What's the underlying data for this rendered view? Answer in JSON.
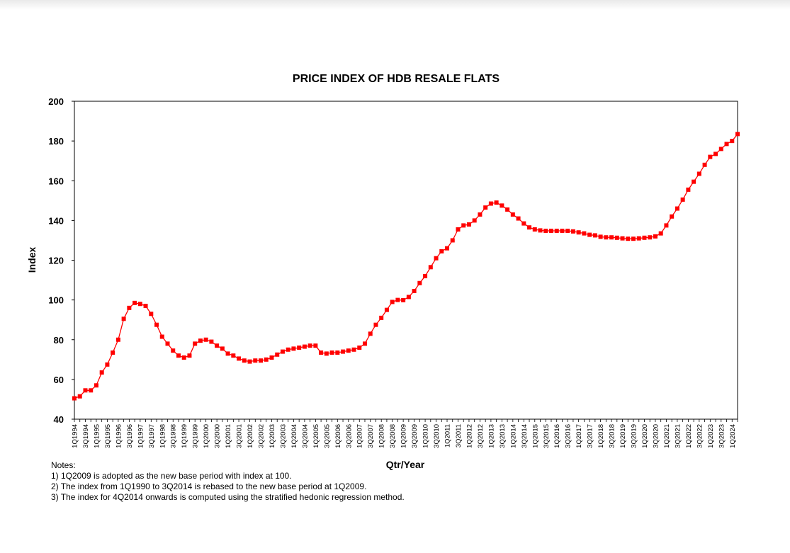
{
  "chart_data": {
    "type": "line",
    "title": "PRICE INDEX OF HDB RESALE FLATS",
    "xlabel": "Qtr/Year",
    "ylabel": "Index",
    "ylim": [
      40,
      200
    ],
    "yticks": [
      40,
      60,
      80,
      100,
      120,
      140,
      160,
      180,
      200
    ],
    "x_start": "1Q1994",
    "x_end": "1Q2024",
    "tick_labels": [
      "1Q1994",
      "3Q1994",
      "1Q1995",
      "3Q1995",
      "1Q1996",
      "3Q1996",
      "1Q1997",
      "3Q1997",
      "1Q1998",
      "3Q1998",
      "1Q1999",
      "3Q1999",
      "1Q2000",
      "3Q2000",
      "1Q2001",
      "3Q2001",
      "1Q2002",
      "3Q2002",
      "1Q2003",
      "3Q2003",
      "1Q2004",
      "3Q2004",
      "1Q2005",
      "3Q2005",
      "1Q2006",
      "3Q2006",
      "1Q2007",
      "3Q2007",
      "1Q2008",
      "3Q2008",
      "1Q2009",
      "3Q2009",
      "1Q2010",
      "3Q2010",
      "1Q2011",
      "3Q2011",
      "1Q2012",
      "3Q2012",
      "1Q2013",
      "3Q2013",
      "1Q2014",
      "3Q2014",
      "1Q2015",
      "3Q2015",
      "1Q2016",
      "3Q2016",
      "1Q2017",
      "3Q2017",
      "1Q2018",
      "3Q2018",
      "1Q2019",
      "3Q2019",
      "1Q2020",
      "3Q2020",
      "1Q2021",
      "3Q2021",
      "1Q2022",
      "3Q2022",
      "1Q2023",
      "3Q2023",
      "1Q2024"
    ],
    "grid": false,
    "legend": "none",
    "series": [
      {
        "color": "#ff0000",
        "values": [
          50.5,
          51.5,
          54.5,
          54.5,
          57,
          63.5,
          67.5,
          73.5,
          80,
          90.5,
          96,
          98.5,
          98,
          97,
          93,
          87.5,
          81.5,
          78,
          74.5,
          72,
          71,
          72,
          78,
          79.5,
          80,
          79,
          77,
          75.5,
          73,
          72,
          70.5,
          69.5,
          69,
          69.5,
          69.5,
          70,
          71,
          72.5,
          74,
          75,
          75.5,
          76,
          76.5,
          77,
          77,
          73.5,
          73,
          73.5,
          73.5,
          74,
          74.5,
          75,
          76,
          78,
          83,
          87.5,
          91,
          95,
          99,
          100,
          99.9,
          101.5,
          104.5,
          108.5,
          112,
          116.5,
          121,
          124.5,
          126,
          130,
          135.5,
          137.5,
          138,
          140,
          143,
          146.5,
          148.5,
          149,
          147.5,
          145.5,
          143,
          141,
          138.5,
          136.5,
          135.5,
          135,
          134.8,
          134.8,
          134.8,
          134.8,
          134.8,
          134.5,
          134,
          133.5,
          132.8,
          132.5,
          131.8,
          131.5,
          131.5,
          131.3,
          131,
          130.8,
          130.8,
          131,
          131.3,
          131.5,
          132,
          133.5,
          137.5,
          142,
          146,
          150.5,
          155.5,
          159.5,
          163.5,
          168,
          172,
          173.5,
          176,
          178.5,
          180,
          183.5
        ]
      }
    ]
  },
  "notes": {
    "heading": "Notes:",
    "items": [
      "1) 1Q2009 is adopted as the new base period with index at 100.",
      "2) The index from 1Q1990 to 3Q2014 is rebased to the new base  period at 1Q2009.",
      "3) The index for 4Q2014 onwards is computed using the stratified hedonic regression method."
    ]
  }
}
